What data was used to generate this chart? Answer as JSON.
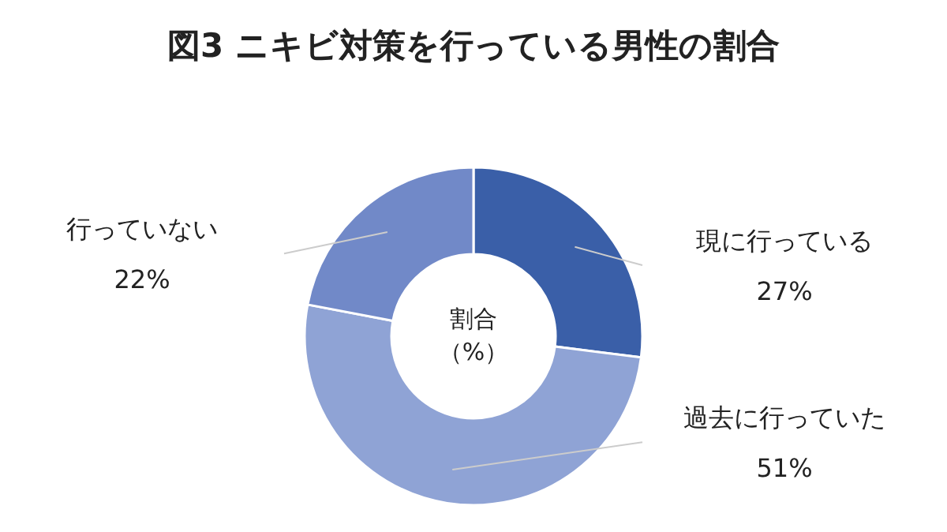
{
  "chart_data": {
    "type": "donut",
    "title": "図3 ニキビ対策を行っている男性の割合",
    "categories": [
      "現に行っている",
      "過去に行っていた",
      "行っていない"
    ],
    "values": [
      27,
      51,
      22
    ],
    "colors": [
      "#3a5fa8",
      "#8fa3d5",
      "#7189c8"
    ],
    "value_labels": [
      "27%",
      "51%",
      "22%"
    ],
    "annotations": [
      "割合",
      "（%）"
    ]
  }
}
